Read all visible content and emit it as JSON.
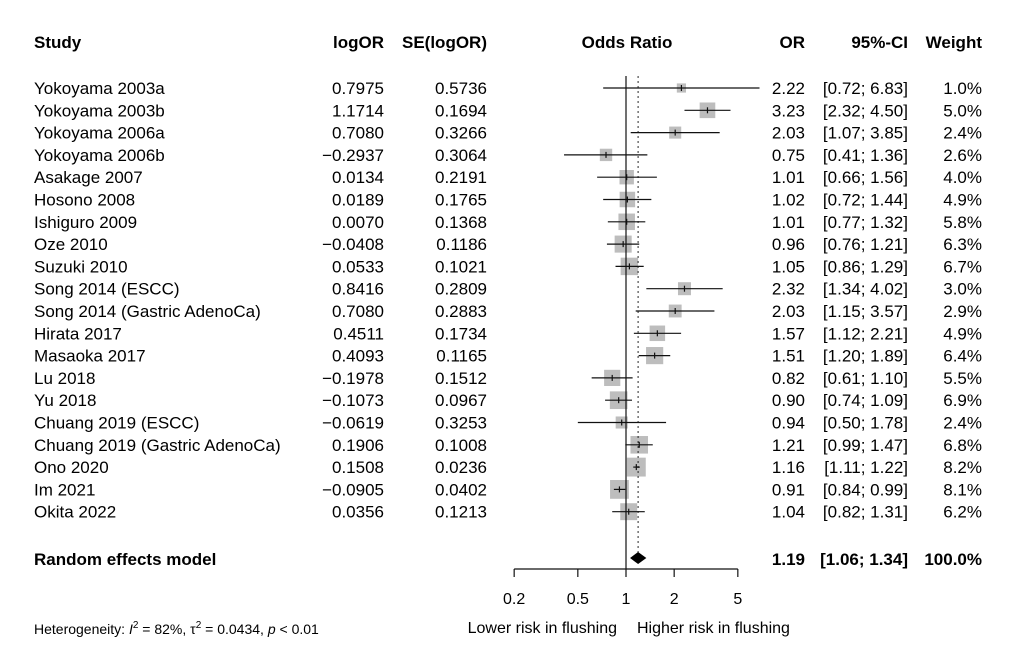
{
  "chart_data": {
    "type": "forest",
    "headers": {
      "study": "Study",
      "logor": "logOR",
      "se": "SE(logOR)",
      "plot": "Odds Ratio",
      "or": "OR",
      "ci": "95%-CI",
      "weight": "Weight"
    },
    "studies": [
      {
        "study": "Yokoyama 2003a",
        "logor": "0.7975",
        "se": "0.5736",
        "or": 2.22,
        "lo": 0.72,
        "hi": 6.83,
        "or_text": "2.22",
        "ci_text": "[0.72; 6.83]",
        "weight_text": "1.0%",
        "weight": 1.0
      },
      {
        "study": "Yokoyama 2003b",
        "logor": "1.1714",
        "se": "0.1694",
        "or": 3.23,
        "lo": 2.32,
        "hi": 4.5,
        "or_text": "3.23",
        "ci_text": "[2.32; 4.50]",
        "weight_text": "5.0%",
        "weight": 5.0
      },
      {
        "study": "Yokoyama 2006a",
        "logor": "0.7080",
        "se": "0.3266",
        "or": 2.03,
        "lo": 1.07,
        "hi": 3.85,
        "or_text": "2.03",
        "ci_text": "[1.07; 3.85]",
        "weight_text": "2.4%",
        "weight": 2.4
      },
      {
        "study": "Yokoyama 2006b",
        "logor": "−0.2937",
        "se": "0.3064",
        "or": 0.75,
        "lo": 0.41,
        "hi": 1.36,
        "or_text": "0.75",
        "ci_text": "[0.41; 1.36]",
        "weight_text": "2.6%",
        "weight": 2.6
      },
      {
        "study": "Asakage 2007",
        "logor": "0.0134",
        "se": "0.2191",
        "or": 1.01,
        "lo": 0.66,
        "hi": 1.56,
        "or_text": "1.01",
        "ci_text": "[0.66; 1.56]",
        "weight_text": "4.0%",
        "weight": 4.0
      },
      {
        "study": "Hosono 2008",
        "logor": "0.0189",
        "se": "0.1765",
        "or": 1.02,
        "lo": 0.72,
        "hi": 1.44,
        "or_text": "1.02",
        "ci_text": "[0.72; 1.44]",
        "weight_text": "4.9%",
        "weight": 4.9
      },
      {
        "study": "Ishiguro 2009",
        "logor": "0.0070",
        "se": "0.1368",
        "or": 1.01,
        "lo": 0.77,
        "hi": 1.32,
        "or_text": "1.01",
        "ci_text": "[0.77; 1.32]",
        "weight_text": "5.8%",
        "weight": 5.8
      },
      {
        "study": "Oze 2010",
        "logor": "−0.0408",
        "se": "0.1186",
        "or": 0.96,
        "lo": 0.76,
        "hi": 1.21,
        "or_text": "0.96",
        "ci_text": "[0.76; 1.21]",
        "weight_text": "6.3%",
        "weight": 6.3
      },
      {
        "study": "Suzuki 2010",
        "logor": "0.0533",
        "se": "0.1021",
        "or": 1.05,
        "lo": 0.86,
        "hi": 1.29,
        "or_text": "1.05",
        "ci_text": "[0.86; 1.29]",
        "weight_text": "6.7%",
        "weight": 6.7
      },
      {
        "study": "Song 2014 (ESCC)",
        "logor": "0.8416",
        "se": "0.2809",
        "or": 2.32,
        "lo": 1.34,
        "hi": 4.02,
        "or_text": "2.32",
        "ci_text": "[1.34; 4.02]",
        "weight_text": "3.0%",
        "weight": 3.0
      },
      {
        "study": "Song 2014 (Gastric AdenoCa)",
        "logor": "0.7080",
        "se": "0.2883",
        "or": 2.03,
        "lo": 1.15,
        "hi": 3.57,
        "or_text": "2.03",
        "ci_text": "[1.15; 3.57]",
        "weight_text": "2.9%",
        "weight": 2.9
      },
      {
        "study": "Hirata 2017",
        "logor": "0.4511",
        "se": "0.1734",
        "or": 1.57,
        "lo": 1.12,
        "hi": 2.21,
        "or_text": "1.57",
        "ci_text": "[1.12; 2.21]",
        "weight_text": "4.9%",
        "weight": 4.9
      },
      {
        "study": "Masaoka 2017",
        "logor": "0.4093",
        "se": "0.1165",
        "or": 1.51,
        "lo": 1.2,
        "hi": 1.89,
        "or_text": "1.51",
        "ci_text": "[1.20; 1.89]",
        "weight_text": "6.4%",
        "weight": 6.4
      },
      {
        "study": "Lu 2018",
        "logor": "−0.1978",
        "se": "0.1512",
        "or": 0.82,
        "lo": 0.61,
        "hi": 1.1,
        "or_text": "0.82",
        "ci_text": "[0.61; 1.10]",
        "weight_text": "5.5%",
        "weight": 5.5
      },
      {
        "study": "Yu 2018",
        "logor": "−0.1073",
        "se": "0.0967",
        "or": 0.9,
        "lo": 0.74,
        "hi": 1.09,
        "or_text": "0.90",
        "ci_text": "[0.74; 1.09]",
        "weight_text": "6.9%",
        "weight": 6.9
      },
      {
        "study": "Chuang 2019 (ESCC)",
        "logor": "−0.0619",
        "se": "0.3253",
        "or": 0.94,
        "lo": 0.5,
        "hi": 1.78,
        "or_text": "0.94",
        "ci_text": "[0.50; 1.78]",
        "weight_text": "2.4%",
        "weight": 2.4
      },
      {
        "study": "Chuang 2019 (Gastric AdenoCa)",
        "logor": "0.1906",
        "se": "0.1008",
        "or": 1.21,
        "lo": 0.99,
        "hi": 1.47,
        "or_text": "1.21",
        "ci_text": "[0.99; 1.47]",
        "weight_text": "6.8%",
        "weight": 6.8
      },
      {
        "study": "Ono 2020",
        "logor": "0.1508",
        "se": "0.0236",
        "or": 1.16,
        "lo": 1.11,
        "hi": 1.22,
        "or_text": "1.16",
        "ci_text": "[1.11; 1.22]",
        "weight_text": "8.2%",
        "weight": 8.2
      },
      {
        "study": "Im 2021",
        "logor": "−0.0905",
        "se": "0.0402",
        "or": 0.91,
        "lo": 0.84,
        "hi": 0.99,
        "or_text": "0.91",
        "ci_text": "[0.84; 0.99]",
        "weight_text": "8.1%",
        "weight": 8.1
      },
      {
        "study": "Okita 2022",
        "logor": "0.0356",
        "se": "0.1213",
        "or": 1.04,
        "lo": 0.82,
        "hi": 1.31,
        "or_text": "1.04",
        "ci_text": "[0.82; 1.31]",
        "weight_text": "6.2%",
        "weight": 6.2
      }
    ],
    "summary": {
      "label": "Random effects model",
      "or": 1.19,
      "lo": 1.06,
      "hi": 1.34,
      "or_text": "1.19",
      "ci_text": "[1.06; 1.34]",
      "weight_text": "100.0%"
    },
    "x_axis": {
      "scale": "log",
      "ticks": [
        0.2,
        0.5,
        1,
        2,
        5
      ],
      "tick_labels": [
        "0.2",
        "0.5",
        "1",
        "2",
        "5"
      ],
      "left_label": "Lower risk in flushing",
      "right_label": "Higher risk in flushing"
    },
    "heterogeneity": {
      "prefix": "Heterogeneity: ",
      "i2_symbol": "I",
      "i2_value": " = 82%, ",
      "tau_symbol": "τ",
      "tau_value": " = 0.0434, ",
      "p_symbol": "p",
      "p_value": " < 0.01",
      "sup": "2"
    },
    "colors": {
      "square": "#bdbdbd",
      "line": "#111111",
      "diamond": "#000000"
    }
  }
}
